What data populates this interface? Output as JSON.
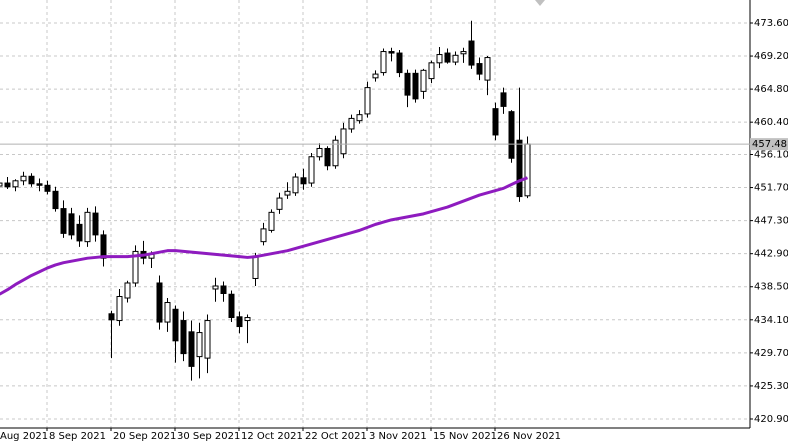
{
  "chart_data": {
    "type": "candlestick",
    "categories": [
      "Aug 2021",
      null,
      null,
      null,
      null,
      null,
      null,
      null,
      "8 Sep 2021",
      null,
      null,
      null,
      null,
      null,
      null,
      null,
      "20 Sep 2021",
      null,
      null,
      null,
      null,
      null,
      null,
      null,
      "30 Sep 2021",
      null,
      null,
      null,
      null,
      null,
      null,
      null,
      "12 Oct 2021",
      null,
      null,
      null,
      null,
      null,
      null,
      null,
      "22 Oct 2021",
      null,
      null,
      null,
      null,
      null,
      null,
      null,
      "3 Nov 2021",
      null,
      null,
      null,
      null,
      null,
      null,
      null,
      "15 Nov 2021",
      null,
      null,
      null,
      null,
      null,
      null,
      null,
      "26 Nov 2021",
      null,
      null,
      null,
      null
    ],
    "open": [
      null,
      null,
      451.9,
      452.3,
      451.8,
      452.6,
      453.2,
      452.2,
      452.0,
      451.2,
      448.9,
      448.2,
      446.8,
      444.5,
      448.3,
      445.4,
      434.9,
      434.0,
      437.0,
      439.0,
      443.2,
      442.3,
      439.0,
      433.8,
      435.5,
      434.0,
      432.5,
      429.2,
      429.0,
      438.2,
      438.6,
      437.5,
      434.5,
      434.0,
      439.6,
      444.5,
      446.0,
      448.8,
      450.7,
      451.0,
      453.0,
      452.3,
      455.8,
      456.9,
      454.6,
      456.2,
      459.5,
      460.6,
      461.5,
      466.3,
      467.0,
      469.8,
      469.6,
      466.9,
      466.9,
      464.5,
      466.2,
      468.3,
      469.6,
      468.4,
      469.5,
      471.2,
      468.2,
      466.0,
      462.2,
      464.3,
      461.8,
      458.0,
      450.6
    ],
    "high": [
      null,
      null,
      453.0,
      453.1,
      452.8,
      453.8,
      453.6,
      452.9,
      452.6,
      451.8,
      450.0,
      449.0,
      448.0,
      449.0,
      449.2,
      446.0,
      435.3,
      438.2,
      439.3,
      444.0,
      444.6,
      443.2,
      440.0,
      437.0,
      436.0,
      435.2,
      434.0,
      433.7,
      434.8,
      439.7,
      439.2,
      438.0,
      435.2,
      434.8,
      443.0,
      447.0,
      448.8,
      451.0,
      452.4,
      453.6,
      454.2,
      456.3,
      457.6,
      457.2,
      458.6,
      460.3,
      461.4,
      462.0,
      465.8,
      467.3,
      470.2,
      470.3,
      470.0,
      467.4,
      467.4,
      467.5,
      468.6,
      470.4,
      470.2,
      469.8,
      470.3,
      473.9,
      469.0,
      469.2,
      463.0,
      465.0,
      462.0,
      465.0,
      458.5
    ],
    "low": [
      null,
      null,
      451.1,
      451.5,
      451.2,
      452.0,
      451.8,
      451.2,
      450.8,
      448.5,
      445.0,
      444.8,
      443.8,
      443.8,
      444.5,
      441.2,
      429.0,
      433.3,
      436.4,
      438.5,
      441.5,
      441.0,
      432.8,
      432.5,
      428.4,
      428.6,
      426.0,
      426.3,
      427.0,
      436.5,
      436.5,
      433.8,
      432.3,
      431.0,
      438.6,
      444.0,
      445.7,
      448.2,
      450.2,
      450.6,
      451.4,
      451.8,
      455.3,
      454.0,
      454.2,
      455.6,
      459.0,
      460.2,
      461.0,
      465.8,
      466.6,
      468.5,
      466.4,
      462.4,
      463.0,
      463.5,
      465.6,
      467.6,
      468.2,
      468.0,
      468.3,
      467.5,
      466.0,
      464.0,
      458.0,
      461.5,
      455.0,
      449.8,
      450.3
    ],
    "close": [
      null,
      null,
      452.3,
      451.8,
      452.6,
      453.2,
      452.2,
      452.0,
      451.2,
      448.9,
      445.6,
      445.4,
      444.6,
      448.4,
      445.4,
      442.3,
      434.1,
      437.2,
      439.0,
      443.2,
      442.3,
      442.8,
      433.8,
      436.4,
      431.3,
      429.6,
      427.9,
      432.4,
      434.0,
      438.6,
      437.6,
      434.4,
      433.2,
      434.4,
      442.6,
      446.2,
      448.4,
      450.3,
      451.2,
      453.1,
      452.2,
      455.8,
      456.9,
      454.6,
      458.0,
      459.5,
      460.9,
      461.4,
      465.0,
      466.8,
      469.8,
      469.6,
      467.0,
      464.0,
      463.5,
      467.3,
      468.3,
      469.4,
      468.4,
      469.3,
      469.8,
      468.0,
      466.8,
      469.0,
      458.7,
      462.5,
      455.6,
      450.5,
      457.48
    ],
    "ma": {
      "color": "#8e1bbf",
      "values": [
        null,
        null,
        437.5,
        438.1,
        438.8,
        439.4,
        440.0,
        440.5,
        441.0,
        441.4,
        441.7,
        441.9,
        442.1,
        442.3,
        442.4,
        442.5,
        442.5,
        442.5,
        442.5,
        442.6,
        442.7,
        442.9,
        443.1,
        443.3,
        443.3,
        443.2,
        443.1,
        443.0,
        442.9,
        442.8,
        442.7,
        442.6,
        442.5,
        442.4,
        442.5,
        442.7,
        442.9,
        443.1,
        443.3,
        443.6,
        443.9,
        444.2,
        444.5,
        444.8,
        445.1,
        445.4,
        445.7,
        446.0,
        446.4,
        446.8,
        447.1,
        447.4,
        447.6,
        447.8,
        448.0,
        448.2,
        448.5,
        448.8,
        449.1,
        449.5,
        449.9,
        450.3,
        450.7,
        451.0,
        451.3,
        451.6,
        452.1,
        452.6,
        453.0
      ]
    },
    "last_price": 457.48,
    "ylim": [
      419.7,
      476.66
    ],
    "yticks": [
      {
        "value": 473.6,
        "label": "473.60"
      },
      {
        "value": 469.2,
        "label": "469.20"
      },
      {
        "value": 464.8,
        "label": "464.80"
      },
      {
        "value": 460.4,
        "label": "460.40"
      },
      {
        "value": 456.1,
        "label": "456.10"
      },
      {
        "value": 451.7,
        "label": "451.70"
      },
      {
        "value": 447.3,
        "label": "447.30"
      },
      {
        "value": 442.9,
        "label": "442.90"
      },
      {
        "value": 438.5,
        "label": "438.50"
      },
      {
        "value": 434.1,
        "label": "434.10"
      },
      {
        "value": 429.7,
        "label": "429.70"
      },
      {
        "value": 425.3,
        "label": "425.30"
      },
      {
        "value": 420.9,
        "label": "420.90"
      }
    ],
    "grid": true
  }
}
